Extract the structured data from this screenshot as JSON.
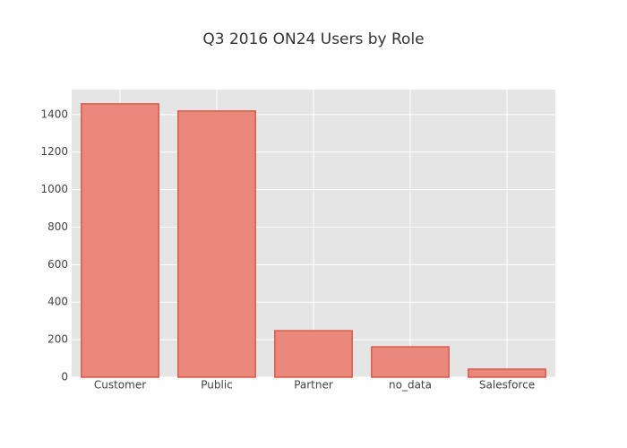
{
  "chart_data": {
    "type": "bar",
    "title": "Q3 2016 ON24 Users by Role",
    "categories": [
      "Customer",
      "Public",
      "Partner",
      "no_data",
      "Salesforce"
    ],
    "values": [
      1457,
      1419,
      248,
      162,
      43
    ],
    "color": "#e8897c",
    "edge_color": "#d9594c",
    "ylim": [
      0,
      1533
    ],
    "yticks": [
      0,
      200,
      400,
      600,
      800,
      1000,
      1200,
      1400
    ],
    "grid": true
  }
}
